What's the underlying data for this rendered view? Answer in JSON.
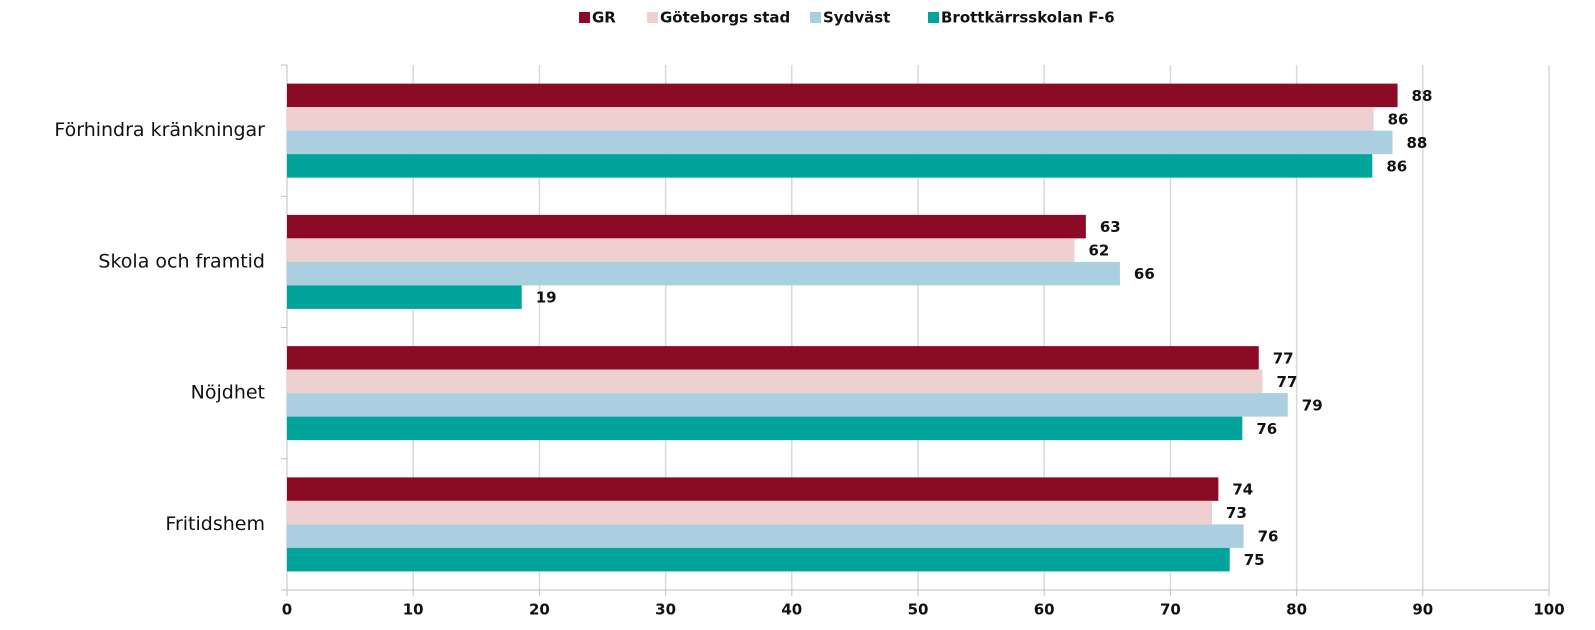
{
  "chart_data": {
    "type": "hbar",
    "categories": [
      "Förhindra kränkningar",
      "Skola och framtid",
      "Nöjdhet",
      "Fritidshem"
    ],
    "series": [
      {
        "name": "GR",
        "color": "#8b0a25",
        "values": [
          88.0,
          63.3,
          77.0,
          73.8
        ],
        "value_labels": [
          "88",
          "63",
          "77",
          "74"
        ]
      },
      {
        "name": "Göteborgs stad",
        "color": "#efd0d1",
        "values": [
          86.1,
          62.4,
          77.3,
          73.3
        ],
        "value_labels": [
          "86",
          "62",
          "77",
          "73"
        ]
      },
      {
        "name": "Sydväst",
        "color": "#a9cfe0",
        "values": [
          87.6,
          66.0,
          79.3,
          75.8
        ],
        "value_labels": [
          "88",
          "66",
          "79",
          "76"
        ]
      },
      {
        "name": "Brottkärrsskolan F-6",
        "color": "#00a49a",
        "values": [
          86.0,
          18.6,
          75.7,
          74.7
        ],
        "value_labels": [
          "86",
          "19",
          "76",
          "75"
        ]
      }
    ],
    "xlim": [
      0,
      100
    ],
    "xticks": [
      0,
      10,
      20,
      30,
      40,
      50,
      60,
      70,
      80,
      90,
      100
    ],
    "grid": true,
    "legend": "top"
  }
}
